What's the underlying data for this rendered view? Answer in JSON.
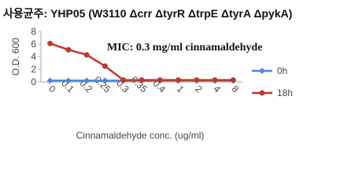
{
  "chart_data": {
    "type": "line",
    "title": "사용균주: YHP05 (W3110 Δcrr ΔtyrR ΔtrpE ΔtyrA ΔpykA)",
    "annotation": "MIC: 0.3 mg/ml cinnamaldehyde",
    "x_label": "Cinnamaldehyde conc. (ug/ml)",
    "y_label": "O.D. 600",
    "categories": [
      "0",
      "0.1",
      "0.2",
      "0.25",
      "0.3",
      "0.35",
      "0.4",
      "1",
      "2",
      "4",
      "8"
    ],
    "series": [
      {
        "name": "0h",
        "color": "#4a86e8",
        "values": [
          0.2,
          0.2,
          0.2,
          0.2,
          0.2,
          0.2,
          0.2,
          0.2,
          0.2,
          0.2,
          0.2
        ]
      },
      {
        "name": "18h",
        "color": "#c0392b",
        "values": [
          6.1,
          5.1,
          4.3,
          2.5,
          0.3,
          0.3,
          0.3,
          0.3,
          0.3,
          0.3,
          0.3
        ]
      }
    ],
    "ylim": [
      0,
      8
    ],
    "yticks": [
      0,
      2,
      4,
      6,
      8
    ],
    "grid": false,
    "legend": "right"
  }
}
